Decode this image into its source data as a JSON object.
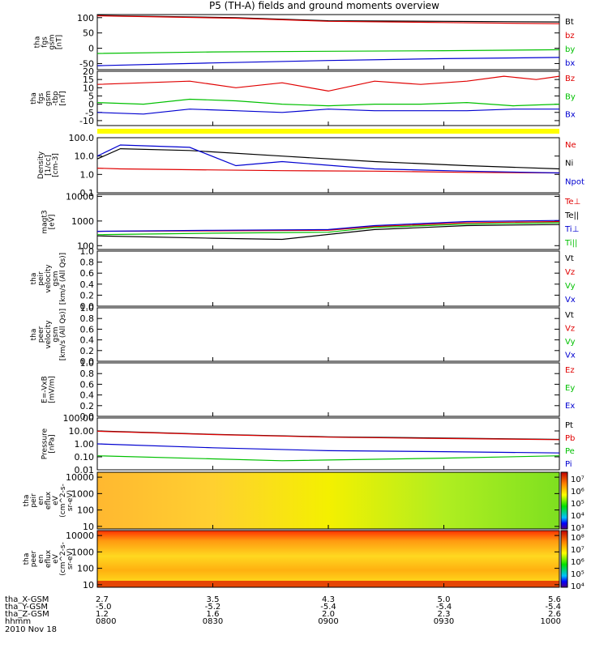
{
  "title": "P5 (TH-A) fields and ground moments overview",
  "colors": {
    "black": "#000000",
    "red": "#e00000",
    "green": "#00c000",
    "blue": "#0000d0",
    "yellow": "#ffff00"
  },
  "panels": [
    {
      "id": "fgs-gsm",
      "ylabel": [
        "tha",
        "fgs",
        "gsm",
        "[nT]"
      ],
      "ticks": [
        "100",
        "50",
        "0",
        "-50"
      ],
      "legend": [
        {
          "text": "Bt",
          "color": "black"
        },
        {
          "text": "bz",
          "color": "red"
        },
        {
          "text": "by",
          "color": "green"
        },
        {
          "text": "bx",
          "color": "blue"
        }
      ]
    },
    {
      "id": "fgs-gsm-tbp",
      "ylabel": [
        "tha",
        "fgs",
        "gsm",
        "-tbp",
        "[nT]"
      ],
      "ticks": [
        "20",
        "15",
        "10",
        "5",
        "0",
        "-5",
        "-10"
      ],
      "legend": [
        {
          "text": "Bz",
          "color": "red"
        },
        {
          "text": "By",
          "color": "green"
        },
        {
          "text": "Bx",
          "color": "blue"
        }
      ]
    },
    {
      "id": "density",
      "ylabel": [
        "Density",
        "[1/cc]",
        "[cm-3]"
      ],
      "ticks": [
        "100.0",
        "10.0",
        "1.0",
        "0.1"
      ],
      "legend": [
        {
          "text": "Ne",
          "color": "red"
        },
        {
          "text": "Ni",
          "color": "black"
        },
        {
          "text": "Npot",
          "color": "blue"
        }
      ]
    },
    {
      "id": "temperature",
      "ylabel": [
        "magt3",
        "[eV]"
      ],
      "ticks": [
        "10000",
        "1000",
        "100"
      ],
      "legend": [
        {
          "text": "Te⊥",
          "color": "red"
        },
        {
          "text": "Te||",
          "color": "black"
        },
        {
          "text": "Ti⊥",
          "color": "blue"
        },
        {
          "text": "Ti||",
          "color": "green"
        }
      ]
    },
    {
      "id": "peir-velocity",
      "ylabel": [
        "tha",
        "peir",
        "velocity",
        "gsm",
        "[km/s (All Qs)]"
      ],
      "ticks": [
        "1.0",
        "0.8",
        "0.6",
        "0.4",
        "0.2",
        "0.0"
      ],
      "legend": [
        {
          "text": "Vt",
          "color": "black"
        },
        {
          "text": "Vz",
          "color": "red"
        },
        {
          "text": "Vy",
          "color": "green"
        },
        {
          "text": "Vx",
          "color": "blue"
        }
      ]
    },
    {
      "id": "peer-velocity",
      "ylabel": [
        "tha",
        "peer",
        "velocity",
        "gsm",
        "[km/s (All Qs)]"
      ],
      "ticks": [
        "1.0",
        "0.8",
        "0.6",
        "0.4",
        "0.2",
        "0.0"
      ],
      "legend": [
        {
          "text": "Vt",
          "color": "black"
        },
        {
          "text": "Vz",
          "color": "red"
        },
        {
          "text": "Vy",
          "color": "green"
        },
        {
          "text": "Vx",
          "color": "blue"
        }
      ]
    },
    {
      "id": "efield",
      "ylabel": [
        "E=-VxB",
        "[mV/m]"
      ],
      "ticks": [
        "1.0",
        "0.8",
        "0.6",
        "0.4",
        "0.2",
        "0.0"
      ],
      "legend": [
        {
          "text": "Ez",
          "color": "red"
        },
        {
          "text": "Ey",
          "color": "green"
        },
        {
          "text": "Ex",
          "color": "blue"
        }
      ]
    },
    {
      "id": "pressure",
      "ylabel": [
        "Pressure",
        "[nPa]"
      ],
      "ticks": [
        "100.00",
        "10.00",
        "1.00",
        "0.10",
        "0.01"
      ],
      "legend": [
        {
          "text": "Pt",
          "color": "black"
        },
        {
          "text": "Pb",
          "color": "red"
        },
        {
          "text": "Pe",
          "color": "green"
        },
        {
          "text": "Pi",
          "color": "blue"
        }
      ]
    },
    {
      "id": "peir-spec",
      "ylabel": [
        "tha",
        "peir",
        "en",
        "eflux",
        "eV",
        "(cm^2-s-",
        "sr-eV)"
      ],
      "ticks": [
        "10000",
        "1000",
        "100",
        "10"
      ],
      "cbar": [
        "10⁷",
        "10⁶",
        "10⁵",
        "10⁴",
        "10³"
      ]
    },
    {
      "id": "peer-spec",
      "ylabel": [
        "tha",
        "peer",
        "en",
        "eflux",
        "eV",
        "(cm^2-s-",
        "sr-eV)"
      ],
      "ticks": [
        "10000",
        "1000",
        "100",
        "10"
      ],
      "cbar": [
        "10⁸",
        "10⁷",
        "10⁶",
        "10⁵",
        "10⁴"
      ]
    }
  ],
  "xaxis": {
    "rows": [
      "tha_X-GSM",
      "tha_Y-GSM",
      "tha_Z-GSM",
      "hhmm"
    ],
    "date": "2010 Nov 18",
    "ticks": [
      {
        "x": "2.7",
        "y": "-5.0",
        "z": "1.2",
        "t": "0800"
      },
      {
        "x": "3.5",
        "y": "-5.2",
        "z": "1.6",
        "t": "0830"
      },
      {
        "x": "4.3",
        "y": "-5.4",
        "z": "2.0",
        "t": "0900"
      },
      {
        "x": "5.0",
        "y": "-5.4",
        "z": "2.3",
        "t": "0930"
      },
      {
        "x": "5.6",
        "y": "-5.4",
        "z": "2.6",
        "t": "1000"
      }
    ]
  },
  "chart_data": {
    "type": "line",
    "title": "P5 (TH-A) fields and ground moments overview",
    "time_range": [
      "0800",
      "1000"
    ],
    "series": [
      {
        "name": "Bt",
        "panel": "fgs-gsm",
        "t": [
          0,
          0.3,
          0.5,
          0.75,
          1
        ],
        "values": [
          107,
          100,
          90,
          88,
          86
        ]
      },
      {
        "name": "bz",
        "panel": "fgs-gsm",
        "t": [
          0,
          0.3,
          0.5,
          0.75,
          1
        ],
        "values": [
          106,
          98,
          88,
          84,
          80
        ]
      },
      {
        "name": "by",
        "panel": "fgs-gsm",
        "t": [
          0,
          0.25,
          0.5,
          0.75,
          1
        ],
        "values": [
          -17,
          -12,
          -10,
          -8,
          -5
        ]
      },
      {
        "name": "bx",
        "panel": "fgs-gsm",
        "t": [
          0,
          0.25,
          0.5,
          0.75,
          1
        ],
        "values": [
          -57,
          -48,
          -40,
          -34,
          -30
        ]
      },
      {
        "name": "Bz",
        "panel": "fgs-gsm-tbp",
        "t": [
          0,
          0.1,
          0.2,
          0.3,
          0.4,
          0.5,
          0.6,
          0.7,
          0.8,
          0.88,
          0.95,
          1
        ],
        "values": [
          12,
          13,
          14,
          10,
          13,
          8,
          14,
          12,
          14,
          17,
          15,
          17
        ]
      },
      {
        "name": "By",
        "panel": "fgs-gsm-tbp",
        "t": [
          0,
          0.1,
          0.2,
          0.3,
          0.4,
          0.5,
          0.6,
          0.7,
          0.8,
          0.9,
          1
        ],
        "values": [
          1,
          0,
          3,
          2,
          0,
          -1,
          0,
          0,
          1,
          -1,
          0
        ]
      },
      {
        "name": "Bx",
        "panel": "fgs-gsm-tbp",
        "t": [
          0,
          0.1,
          0.2,
          0.3,
          0.4,
          0.5,
          0.6,
          0.7,
          0.8,
          0.9,
          1
        ],
        "values": [
          -5,
          -6,
          -3,
          -4,
          -5,
          -3,
          -4,
          -4,
          -4,
          -3,
          -3
        ]
      },
      {
        "name": "Ne",
        "panel": "density",
        "t": [
          0,
          0.05,
          0.2,
          0.4,
          0.6,
          0.8,
          1
        ],
        "values": [
          2.2,
          2,
          1.8,
          1.6,
          1.5,
          1.3,
          1.2
        ]
      },
      {
        "name": "Ni",
        "panel": "density",
        "t": [
          0,
          0.05,
          0.2,
          0.4,
          0.6,
          0.8,
          1
        ],
        "values": [
          7,
          25,
          20,
          10,
          5,
          3,
          2
        ]
      },
      {
        "name": "Npot",
        "panel": "density",
        "t": [
          0,
          0.05,
          0.2,
          0.3,
          0.4,
          0.6,
          0.8,
          1
        ],
        "values": [
          10,
          40,
          30,
          3,
          5,
          2,
          1.5,
          1.2
        ]
      },
      {
        "name": "Te⊥",
        "panel": "temperature",
        "t": [
          0,
          0.25,
          0.5,
          0.6,
          0.8,
          1
        ],
        "values": [
          380,
          400,
          420,
          600,
          850,
          950
        ]
      },
      {
        "name": "Te||",
        "panel": "temperature",
        "t": [
          0,
          0.25,
          0.4,
          0.6,
          0.8,
          1
        ],
        "values": [
          250,
          200,
          180,
          450,
          650,
          720
        ]
      },
      {
        "name": "Ti⊥",
        "panel": "temperature",
        "t": [
          0,
          0.25,
          0.5,
          0.6,
          0.8,
          1
        ],
        "values": [
          380,
          420,
          450,
          650,
          950,
          1050
        ]
      },
      {
        "name": "Ti||",
        "panel": "temperature",
        "t": [
          0,
          0.25,
          0.5,
          0.6,
          0.8,
          1
        ],
        "values": [
          280,
          320,
          350,
          550,
          750,
          850
        ]
      },
      {
        "name": "Pt",
        "panel": "pressure",
        "t": [
          0,
          0.25,
          0.5,
          0.75,
          1
        ],
        "values": [
          10,
          5.5,
          3.5,
          2.8,
          2.2
        ]
      },
      {
        "name": "Pb",
        "panel": "pressure",
        "t": [
          0,
          0.25,
          0.5,
          0.75,
          1
        ],
        "values": [
          9.5,
          5.2,
          3.3,
          2.6,
          2.1
        ]
      },
      {
        "name": "Pe",
        "panel": "pressure",
        "t": [
          0,
          0.25,
          0.4,
          0.75,
          1
        ],
        "values": [
          0.12,
          0.07,
          0.05,
          0.08,
          0.12
        ]
      },
      {
        "name": "Pi",
        "panel": "pressure",
        "t": [
          0,
          0.25,
          0.5,
          0.75,
          1
        ],
        "values": [
          1,
          0.5,
          0.3,
          0.25,
          0.2
        ]
      }
    ]
  }
}
